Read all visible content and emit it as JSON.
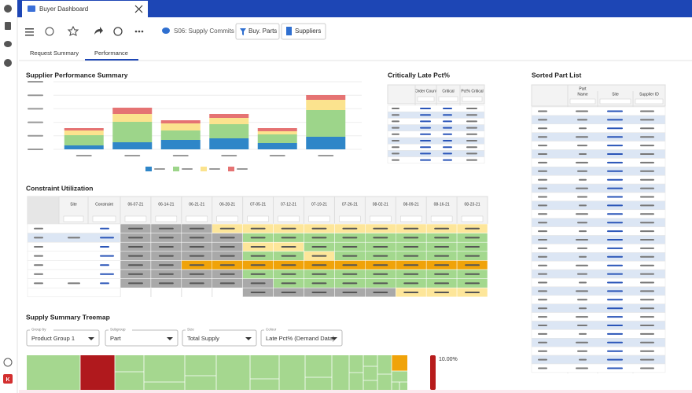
{
  "window": {
    "tab": "Buyer Dashboard"
  },
  "toolbar": {
    "scenario": "S06: Supply Commits",
    "buttons": [
      "Buy. Parts",
      "Suppliers"
    ]
  },
  "tabs": [
    "Request Summary",
    "Performance"
  ],
  "chart_data": {
    "type": "bar",
    "stacked": true,
    "title": "Supplier Performance Summary",
    "categories": [
      null,
      null,
      null,
      null,
      null,
      null
    ],
    "series": [
      {
        "color": "#2f86c8",
        "values": [
          5,
          9,
          12,
          14,
          8,
          16
        ]
      },
      {
        "color": "#9dd58a",
        "values": [
          13,
          26,
          12,
          18,
          11,
          34
        ]
      },
      {
        "color": "#fbe38e",
        "values": [
          6,
          10,
          9,
          8,
          4,
          13
        ]
      },
      {
        "color": "#e57373",
        "values": [
          3,
          8,
          4,
          5,
          4,
          6
        ]
      }
    ],
    "ylim": [
      0,
      86
    ],
    "grid": true
  },
  "critically_late": {
    "title": "Critically Late Pct%",
    "columns": [
      "Order Count",
      "Critical",
      "Pct% Critical"
    ]
  },
  "sorted_parts": {
    "title": "Sorted Part List",
    "group_header": "Part",
    "columns": [
      "Name",
      "Site",
      "Supplier ID"
    ]
  },
  "constraint": {
    "title": "Constraint Utilization",
    "columns": [
      "Site",
      "Constraint",
      "06-07-21",
      "06-14-21",
      "06-21-21",
      "06-28-21",
      "07-05-21",
      "07-12-21",
      "07-19-21",
      "07-26-21",
      "08-02-21",
      "08-09-21",
      "08-16-21",
      "08-23-21"
    ]
  },
  "treemap": {
    "title": "Supply Summary Treemap",
    "controls": [
      {
        "label": "Group by",
        "value": "Product Group 1"
      },
      {
        "label": "Subgroup",
        "value": "Part"
      },
      {
        "label": "Size",
        "value": "Total Supply"
      },
      {
        "label": "Colour",
        "value": "Late Pct% (Demand Data)"
      }
    ],
    "legend_max": "10.00%"
  }
}
